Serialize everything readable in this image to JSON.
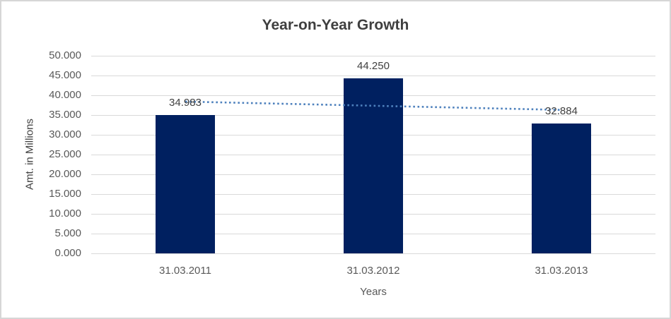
{
  "chart_data": {
    "type": "bar",
    "title": "Year-on-Year Growth",
    "xlabel": "Years",
    "ylabel": "Amt. in Millions",
    "categories": [
      "31.03.2011",
      "31.03.2012",
      "31.03.2013"
    ],
    "values": [
      34.983,
      44.25,
      32.884
    ],
    "data_labels": [
      "34.983",
      "44.250",
      "32.884"
    ],
    "ylim": [
      0,
      50
    ],
    "ytick_step": 5,
    "ytick_decimals": 3,
    "grid": true,
    "legend": false,
    "trendline": {
      "type": "linear",
      "style": "dotted",
      "start_value": 38.4,
      "end_value": 36.3
    },
    "colors": {
      "bar": "#002060",
      "trendline": "#4e81bd",
      "gridline": "#d9d9d9",
      "tick_label": "#595959",
      "axis_title": "#404040",
      "title": "#3f3f3f",
      "data_label": "#404040",
      "border": "#d6d6d6",
      "background": "#ffffff"
    }
  }
}
